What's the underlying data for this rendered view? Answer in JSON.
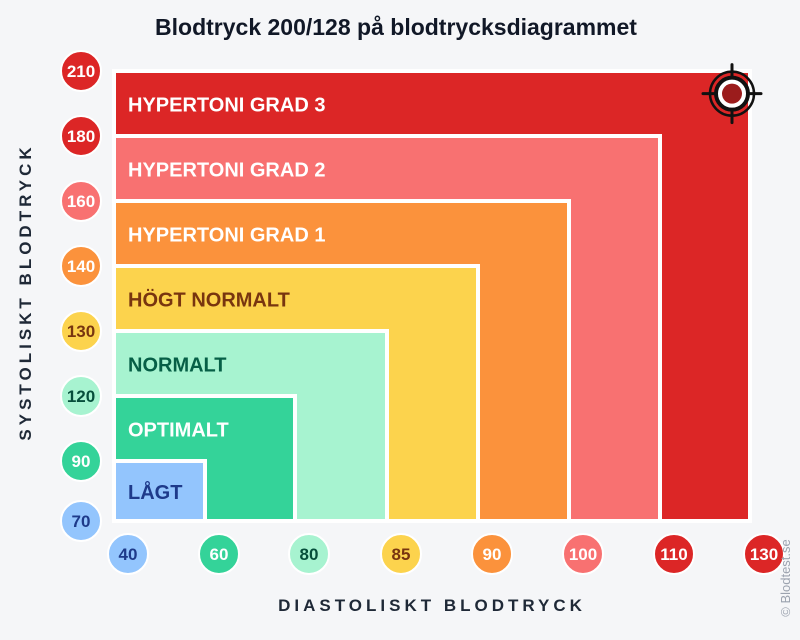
{
  "chart_data": {
    "type": "bar",
    "title": "Blodtryck 200/128 på blodtrycksdiagrammet",
    "xlabel": "DIASTOLISKT BLODTRYCK",
    "ylabel": "SYSTOLISKT BLODTRYCK",
    "x_ticks": [
      {
        "label": "40",
        "color": "#93c5fd",
        "text_color": "#1e3a8a"
      },
      {
        "label": "60",
        "color": "#34d399",
        "text_color": "#ffffff"
      },
      {
        "label": "80",
        "color": "#a7f3d0",
        "text_color": "#064e3b"
      },
      {
        "label": "85",
        "color": "#fcd34d",
        "text_color": "#78350f"
      },
      {
        "label": "90",
        "color": "#fb923c",
        "text_color": "#ffffff"
      },
      {
        "label": "100",
        "color": "#f87171",
        "text_color": "#ffffff"
      },
      {
        "label": "110",
        "color": "#dc2626",
        "text_color": "#ffffff"
      },
      {
        "label": "130",
        "color": "#dc2626",
        "text_color": "#ffffff"
      }
    ],
    "y_ticks": [
      {
        "label": "70",
        "color": "#93c5fd",
        "text_color": "#1e3a8a"
      },
      {
        "label": "90",
        "color": "#34d399",
        "text_color": "#ffffff"
      },
      {
        "label": "120",
        "color": "#a7f3d0",
        "text_color": "#064e3b"
      },
      {
        "label": "130",
        "color": "#fcd34d",
        "text_color": "#78350f"
      },
      {
        "label": "140",
        "color": "#fb923c",
        "text_color": "#ffffff"
      },
      {
        "label": "160",
        "color": "#f87171",
        "text_color": "#ffffff"
      },
      {
        "label": "180",
        "color": "#dc2626",
        "text_color": "#ffffff"
      },
      {
        "label": "210",
        "color": "#dc2626",
        "text_color": "#ffffff"
      }
    ],
    "categories": [
      {
        "name": "LÅGT",
        "systolic_max": 90,
        "diastolic_max": 60,
        "color": "#93c5fd",
        "text_color": "#1e3a8a"
      },
      {
        "name": "OPTIMALT",
        "systolic_max": 120,
        "diastolic_max": 80,
        "color": "#34d399",
        "text_color": "#ffffff"
      },
      {
        "name": "NORMALT",
        "systolic_max": 130,
        "diastolic_max": 85,
        "color": "#a7f3d0",
        "text_color": "#065f46"
      },
      {
        "name": "HÖGT NORMALT",
        "systolic_max": 140,
        "diastolic_max": 90,
        "color": "#fcd34d",
        "text_color": "#78350f"
      },
      {
        "name": "HYPERTONI GRAD 1",
        "systolic_max": 160,
        "diastolic_max": 100,
        "color": "#fb923c",
        "text_color": "#ffffff"
      },
      {
        "name": "HYPERTONI GRAD 2",
        "systolic_max": 180,
        "diastolic_max": 110,
        "color": "#f87171",
        "text_color": "#ffffff"
      },
      {
        "name": "HYPERTONI GRAD 3",
        "systolic_max": 210,
        "diastolic_max": 130,
        "color": "#dc2626",
        "text_color": "#ffffff"
      }
    ],
    "marker": {
      "systolic": 200,
      "diastolic": 128,
      "color": "#9b1c1c"
    },
    "credit": "© Blodtest.se"
  }
}
